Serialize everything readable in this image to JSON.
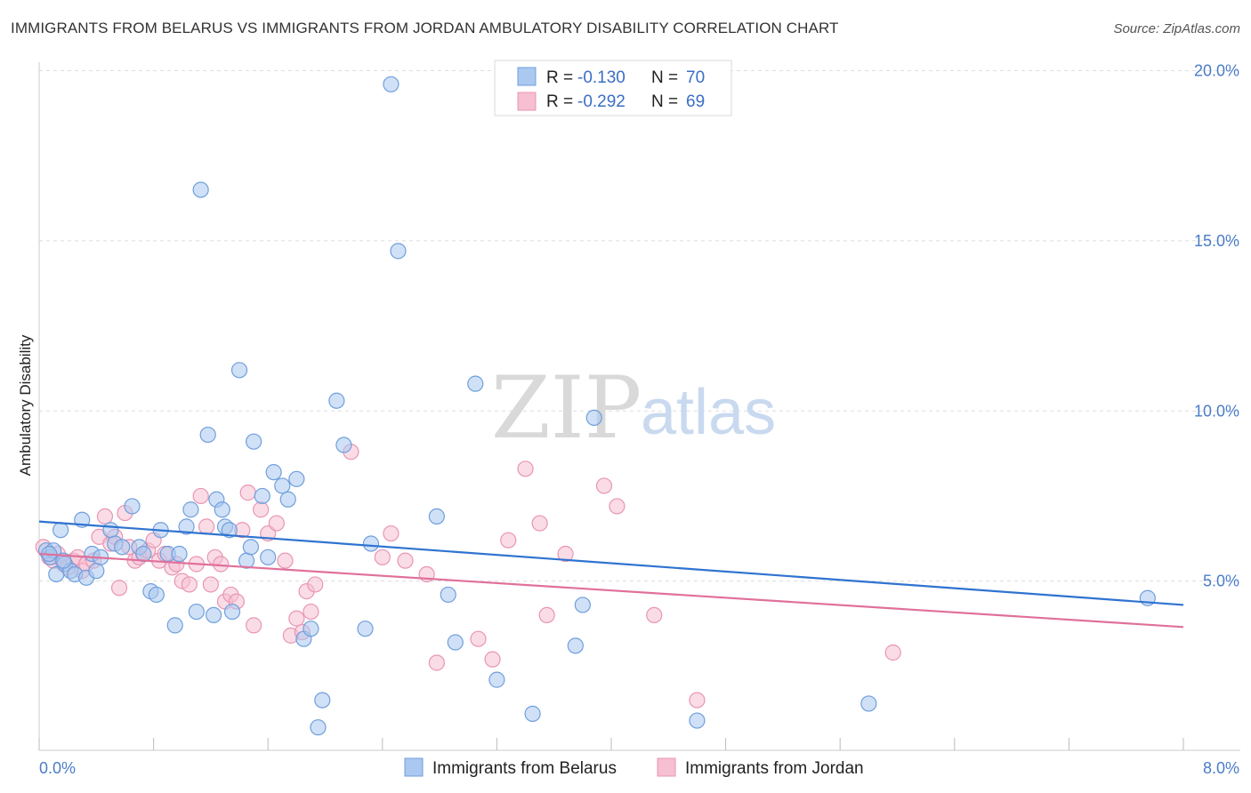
{
  "header": {
    "title": "IMMIGRANTS FROM BELARUS VS IMMIGRANTS FROM JORDAN AMBULATORY DISABILITY CORRELATION CHART",
    "source": "Source: ZipAtlas.com"
  },
  "watermark": {
    "zip": "ZIP",
    "atlas": "atlas"
  },
  "colors": {
    "belarus_fill": "#aac8f0",
    "belarus_stroke": "#6f9fdc",
    "belarus_line": "#2f73d0",
    "jordan_fill": "#f6bfd2",
    "jordan_stroke": "#e995b3",
    "jordan_line": "#e0709a",
    "tick_label": "#4a7cc9",
    "grid": "#dddddd"
  },
  "chart_data": {
    "type": "scatter",
    "title": "IMMIGRANTS FROM BELARUS VS IMMIGRANTS FROM JORDAN AMBULATORY DISABILITY CORRELATION CHART",
    "xlabel": "",
    "ylabel": "Ambulatory Disability",
    "xlim": [
      0,
      8
    ],
    "ylim": [
      0,
      20.5
    ],
    "x_tick_labels": [
      "0.0%",
      "8.0%"
    ],
    "y_ticks": [
      5,
      10,
      15,
      20
    ],
    "y_tick_labels": [
      "5.0%",
      "10.0%",
      "15.0%",
      "20.0%"
    ],
    "grid": true,
    "legend": {
      "placement": "top-center",
      "entries": [
        {
          "r_label": "R =",
          "r_value": "-0.130",
          "n_label": "N =",
          "n_value": "70"
        },
        {
          "r_label": "R =",
          "r_value": "-0.292",
          "n_label": "N =",
          "n_value": "69"
        }
      ]
    },
    "series": [
      {
        "name": "Immigrants from Belarus",
        "trend": {
          "x": [
            0,
            8
          ],
          "y": [
            6.75,
            4.3
          ]
        },
        "points": [
          [
            0.05,
            5.9
          ],
          [
            0.08,
            5.7
          ],
          [
            0.1,
            5.9
          ],
          [
            0.12,
            5.2
          ],
          [
            0.15,
            6.5
          ],
          [
            0.18,
            5.5
          ],
          [
            0.22,
            5.3
          ],
          [
            0.25,
            5.2
          ],
          [
            0.3,
            6.8
          ],
          [
            0.33,
            5.1
          ],
          [
            0.37,
            5.8
          ],
          [
            0.4,
            5.3
          ],
          [
            0.43,
            5.7
          ],
          [
            0.5,
            6.5
          ],
          [
            0.53,
            6.1
          ],
          [
            0.58,
            6.0
          ],
          [
            0.65,
            7.2
          ],
          [
            0.7,
            6.0
          ],
          [
            0.73,
            5.8
          ],
          [
            0.78,
            4.7
          ],
          [
            0.82,
            4.6
          ],
          [
            0.85,
            6.5
          ],
          [
            0.9,
            5.8
          ],
          [
            0.95,
            3.7
          ],
          [
            0.98,
            5.8
          ],
          [
            1.03,
            6.6
          ],
          [
            1.06,
            7.1
          ],
          [
            1.1,
            4.1
          ],
          [
            1.13,
            16.5
          ],
          [
            1.18,
            9.3
          ],
          [
            1.22,
            4.0
          ],
          [
            1.24,
            7.4
          ],
          [
            1.28,
            7.1
          ],
          [
            1.3,
            6.6
          ],
          [
            1.33,
            6.5
          ],
          [
            1.35,
            4.1
          ],
          [
            1.4,
            11.2
          ],
          [
            1.45,
            5.6
          ],
          [
            1.48,
            6.0
          ],
          [
            1.5,
            9.1
          ],
          [
            1.56,
            7.5
          ],
          [
            1.6,
            5.7
          ],
          [
            1.64,
            8.2
          ],
          [
            1.7,
            7.8
          ],
          [
            1.74,
            7.4
          ],
          [
            1.8,
            8.0
          ],
          [
            1.85,
            3.3
          ],
          [
            1.9,
            3.6
          ],
          [
            1.95,
            0.7
          ],
          [
            1.98,
            1.5
          ],
          [
            2.08,
            10.3
          ],
          [
            2.13,
            9.0
          ],
          [
            2.28,
            3.6
          ],
          [
            2.32,
            6.1
          ],
          [
            2.46,
            19.6
          ],
          [
            2.51,
            14.7
          ],
          [
            2.78,
            6.9
          ],
          [
            2.86,
            4.6
          ],
          [
            2.91,
            3.2
          ],
          [
            3.05,
            10.8
          ],
          [
            3.2,
            2.1
          ],
          [
            3.45,
            1.1
          ],
          [
            3.75,
            3.1
          ],
          [
            3.8,
            4.3
          ],
          [
            3.88,
            9.8
          ],
          [
            4.6,
            0.9
          ],
          [
            5.8,
            1.4
          ],
          [
            7.75,
            4.5
          ],
          [
            0.07,
            5.8
          ],
          [
            0.17,
            5.6
          ]
        ]
      },
      {
        "name": "Immigrants from Jordan",
        "trend": {
          "x": [
            0,
            8
          ],
          "y": [
            5.8,
            3.65
          ]
        },
        "points": [
          [
            0.03,
            6.0
          ],
          [
            0.07,
            5.7
          ],
          [
            0.1,
            5.6
          ],
          [
            0.13,
            5.8
          ],
          [
            0.17,
            5.5
          ],
          [
            0.2,
            5.4
          ],
          [
            0.24,
            5.6
          ],
          [
            0.27,
            5.7
          ],
          [
            0.3,
            5.3
          ],
          [
            0.33,
            5.5
          ],
          [
            0.38,
            5.6
          ],
          [
            0.42,
            6.3
          ],
          [
            0.46,
            6.9
          ],
          [
            0.5,
            6.1
          ],
          [
            0.53,
            6.3
          ],
          [
            0.56,
            4.8
          ],
          [
            0.6,
            7.0
          ],
          [
            0.63,
            6.0
          ],
          [
            0.67,
            5.6
          ],
          [
            0.7,
            5.7
          ],
          [
            0.73,
            5.8
          ],
          [
            0.76,
            5.9
          ],
          [
            0.8,
            6.2
          ],
          [
            0.84,
            5.6
          ],
          [
            0.88,
            5.8
          ],
          [
            0.93,
            5.4
          ],
          [
            0.96,
            5.5
          ],
          [
            1.0,
            5.0
          ],
          [
            1.05,
            4.9
          ],
          [
            1.1,
            5.5
          ],
          [
            1.13,
            7.5
          ],
          [
            1.17,
            6.6
          ],
          [
            1.2,
            4.9
          ],
          [
            1.23,
            5.7
          ],
          [
            1.27,
            5.5
          ],
          [
            1.3,
            4.4
          ],
          [
            1.34,
            4.6
          ],
          [
            1.38,
            4.4
          ],
          [
            1.42,
            6.5
          ],
          [
            1.46,
            7.6
          ],
          [
            1.5,
            3.7
          ],
          [
            1.55,
            7.1
          ],
          [
            1.6,
            6.4
          ],
          [
            1.66,
            6.7
          ],
          [
            1.72,
            5.6
          ],
          [
            1.76,
            3.4
          ],
          [
            1.8,
            3.9
          ],
          [
            1.84,
            3.5
          ],
          [
            1.87,
            4.7
          ],
          [
            1.9,
            4.1
          ],
          [
            1.93,
            4.9
          ],
          [
            2.18,
            8.8
          ],
          [
            2.4,
            5.7
          ],
          [
            2.46,
            6.4
          ],
          [
            2.56,
            5.6
          ],
          [
            2.71,
            5.2
          ],
          [
            2.78,
            2.6
          ],
          [
            3.07,
            3.3
          ],
          [
            3.17,
            2.7
          ],
          [
            3.28,
            6.2
          ],
          [
            3.4,
            8.3
          ],
          [
            3.5,
            6.7
          ],
          [
            3.55,
            4.0
          ],
          [
            3.68,
            5.8
          ],
          [
            3.95,
            7.8
          ],
          [
            4.04,
            7.2
          ],
          [
            4.3,
            4.0
          ],
          [
            4.6,
            1.5
          ],
          [
            5.97,
            2.9
          ]
        ]
      }
    ]
  },
  "bottom_legend": [
    {
      "label": "Immigrants from Belarus"
    },
    {
      "label": "Immigrants from Jordan"
    }
  ]
}
